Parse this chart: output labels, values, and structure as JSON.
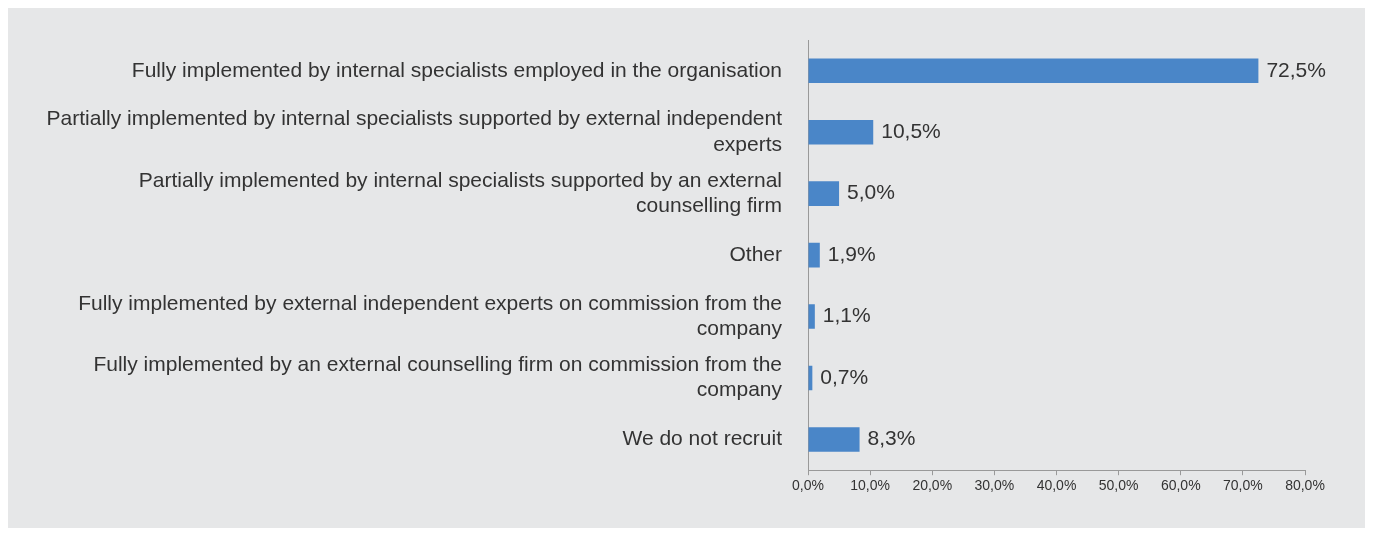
{
  "chart_data": {
    "type": "bar",
    "orientation": "horizontal",
    "categories": [
      "Fully implemented by internal specialists employed in the organisation",
      "Partially implemented by internal specialists supported by external independent experts",
      "Partially implemented by internal specialists supported by an external counselling firm",
      "Other",
      "Fully implemented by external independent experts on commission from the company",
      "Fully implemented by an external counselling firm on commission from the company",
      "We do not recruit"
    ],
    "values": [
      72.5,
      10.5,
      5.0,
      1.9,
      1.1,
      0.7,
      8.3
    ],
    "value_labels": [
      "72,5%",
      "10,5%",
      "5,0%",
      "1,9%",
      "1,1%",
      "0,7%",
      "8,3%"
    ],
    "color": "#4a86c8",
    "xlim": [
      0,
      80
    ],
    "xticks": [
      {
        "value": 0,
        "label": "0,0%"
      },
      {
        "value": 10,
        "label": "10,0%"
      },
      {
        "value": 20,
        "label": "20,0%"
      },
      {
        "value": 30,
        "label": "30,0%"
      },
      {
        "value": 40,
        "label": "40,0%"
      },
      {
        "value": 50,
        "label": "50,0%"
      },
      {
        "value": 60,
        "label": "60,0%"
      },
      {
        "value": 70,
        "label": "70,0%"
      },
      {
        "value": 80,
        "label": "80,0%"
      }
    ],
    "grid": false,
    "legend": false
  }
}
